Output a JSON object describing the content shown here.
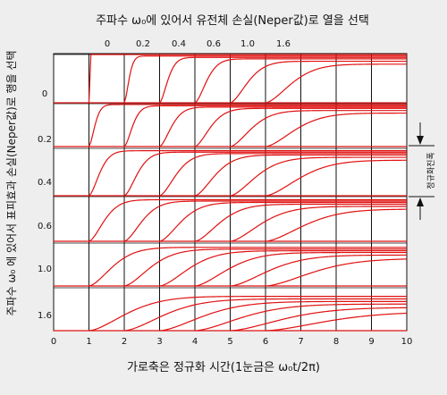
{
  "chart_data": {
    "type": "line",
    "title": "주파수 ω₀에 있어서 유전체 손실(Neper값)로 열을 선택",
    "xlabel": "가로축은 정규화 시간(1눈금은 ω₀t/2π)",
    "ylabel": "주파수 ω₀ 에 있어서 표피효과 손실(Neper값)로 행을 선택",
    "side_label": "정규화진폭",
    "x_ticks": [
      "0",
      "1",
      "2",
      "3",
      "4",
      "5",
      "6",
      "7",
      "8",
      "9",
      "10"
    ],
    "column_labels": [
      "0",
      "0.2",
      "0.4",
      "0.6",
      "1.0",
      "1.6"
    ],
    "row_labels": [
      "0",
      "0.2",
      "0.4",
      "0.6",
      "1.0",
      "1.6"
    ],
    "xlim": [
      0,
      10
    ],
    "line_color": "#e01010",
    "grid": true,
    "rows": [
      {
        "label": "0",
        "curves": [
          {
            "column": "0",
            "onset": 1.0,
            "rise": 0.05,
            "final": 1.0
          },
          {
            "column": "0.2",
            "onset": 2.0,
            "rise": 0.2,
            "final": 0.97
          },
          {
            "column": "0.4",
            "onset": 3.0,
            "rise": 0.35,
            "final": 0.94
          },
          {
            "column": "0.6",
            "onset": 4.0,
            "rise": 0.5,
            "final": 0.91
          },
          {
            "column": "1.0",
            "onset": 5.0,
            "rise": 0.75,
            "final": 0.86
          },
          {
            "column": "1.6",
            "onset": 6.0,
            "rise": 1.1,
            "final": 0.8
          }
        ]
      },
      {
        "label": "0.2",
        "curves": [
          {
            "column": "0",
            "onset": 1.0,
            "rise": 0.25,
            "final": 0.98
          },
          {
            "column": "0.2",
            "onset": 2.0,
            "rise": 0.35,
            "final": 0.95
          },
          {
            "column": "0.4",
            "onset": 3.0,
            "rise": 0.5,
            "final": 0.92
          },
          {
            "column": "0.6",
            "onset": 4.0,
            "rise": 0.65,
            "final": 0.89
          },
          {
            "column": "1.0",
            "onset": 5.0,
            "rise": 0.9,
            "final": 0.84
          },
          {
            "column": "1.6",
            "onset": 6.0,
            "rise": 1.25,
            "final": 0.78
          }
        ]
      },
      {
        "label": "0.4",
        "curves": [
          {
            "column": "0",
            "onset": 1.0,
            "rise": 0.45,
            "final": 0.95
          },
          {
            "column": "0.2",
            "onset": 2.0,
            "rise": 0.55,
            "final": 0.92
          },
          {
            "column": "0.4",
            "onset": 3.0,
            "rise": 0.7,
            "final": 0.89
          },
          {
            "column": "0.6",
            "onset": 4.0,
            "rise": 0.85,
            "final": 0.86
          },
          {
            "column": "1.0",
            "onset": 5.0,
            "rise": 1.1,
            "final": 0.81
          },
          {
            "column": "1.6",
            "onset": 6.0,
            "rise": 1.45,
            "final": 0.75
          }
        ]
      },
      {
        "label": "0.6",
        "curves": [
          {
            "column": "0",
            "onset": 1.0,
            "rise": 0.65,
            "final": 0.93
          },
          {
            "column": "0.2",
            "onset": 2.0,
            "rise": 0.75,
            "final": 0.9
          },
          {
            "column": "0.4",
            "onset": 3.0,
            "rise": 0.9,
            "final": 0.87
          },
          {
            "column": "0.6",
            "onset": 4.0,
            "rise": 1.05,
            "final": 0.83
          },
          {
            "column": "1.0",
            "onset": 5.0,
            "rise": 1.3,
            "final": 0.78
          },
          {
            "column": "1.6",
            "onset": 6.0,
            "rise": 1.65,
            "final": 0.72
          }
        ]
      },
      {
        "label": "1.0",
        "curves": [
          {
            "column": "0",
            "onset": 1.0,
            "rise": 1.0,
            "final": 0.9
          },
          {
            "column": "0.2",
            "onset": 2.0,
            "rise": 1.1,
            "final": 0.86
          },
          {
            "column": "0.4",
            "onset": 3.0,
            "rise": 1.25,
            "final": 0.82
          },
          {
            "column": "0.6",
            "onset": 4.0,
            "rise": 1.4,
            "final": 0.78
          },
          {
            "column": "1.0",
            "onset": 5.0,
            "rise": 1.65,
            "final": 0.72
          },
          {
            "column": "1.6",
            "onset": 6.0,
            "rise": 2.0,
            "final": 0.64
          }
        ]
      },
      {
        "label": "1.6",
        "curves": [
          {
            "column": "0",
            "onset": 1.0,
            "rise": 1.6,
            "final": 0.8
          },
          {
            "column": "0.2",
            "onset": 2.0,
            "rise": 1.7,
            "final": 0.74
          },
          {
            "column": "0.4",
            "onset": 3.0,
            "rise": 1.85,
            "final": 0.68
          },
          {
            "column": "0.6",
            "onset": 4.0,
            "rise": 2.0,
            "final": 0.62
          },
          {
            "column": "1.0",
            "onset": 5.0,
            "rise": 2.25,
            "final": 0.54
          },
          {
            "column": "1.6",
            "onset": 6.0,
            "rise": 2.6,
            "final": 0.44
          }
        ]
      }
    ]
  }
}
